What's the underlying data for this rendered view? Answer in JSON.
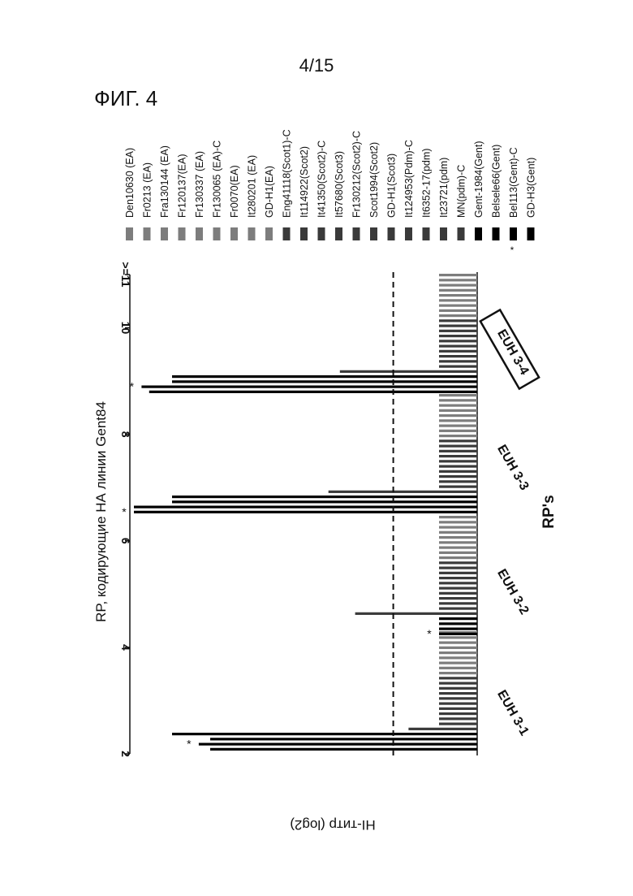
{
  "page_number": "4/15",
  "figure_label": "ФИГ. 4",
  "chart_data": {
    "type": "bar",
    "orientation": "rotated-90-ccw",
    "title": "RP, кодирующие НА линии Gent84",
    "xlabel": "RP's",
    "ylabel": "HI-титр (log2)",
    "ylim": [
      2,
      11
    ],
    "yticks": [
      2,
      4,
      6,
      8,
      10,
      11
    ],
    "ytick_labels": [
      "2",
      "4",
      "6",
      "8",
      "10",
      ">=11"
    ],
    "threshold": {
      "value": 4.2,
      "style": "dashed"
    },
    "categories": [
      "EUH 3-1",
      "EUH 3-2",
      "EUH 3-3",
      "EUH 3-4"
    ],
    "boxed_category": "EUH 3-4",
    "colors": {
      "light_gray": "#7d7d7d",
      "dark_gray": "#3a3a3a",
      "black": "#000000"
    },
    "series": [
      {
        "name": "Den10630 (EA)",
        "color": "#7d7d7d"
      },
      {
        "name": "Fr0213 (EA)",
        "color": "#7d7d7d"
      },
      {
        "name": "Fra130144 (EA)",
        "color": "#7d7d7d"
      },
      {
        "name": "Fr120137(EA)",
        "color": "#7d7d7d"
      },
      {
        "name": "Fr130337 (EA)",
        "color": "#7d7d7d"
      },
      {
        "name": "Fr130065 (EA)-C",
        "color": "#7d7d7d"
      },
      {
        "name": "Fr0070(EA)",
        "color": "#7d7d7d"
      },
      {
        "name": "It280201 (EA)",
        "color": "#7d7d7d"
      },
      {
        "name": "GD-H1(EA)",
        "color": "#7d7d7d"
      },
      {
        "name": "Eng41118(Scot1)-C",
        "color": "#3a3a3a"
      },
      {
        "name": "It114922(Scot2)",
        "color": "#3a3a3a"
      },
      {
        "name": "It41350(Scot2)-C",
        "color": "#3a3a3a"
      },
      {
        "name": "It57680(Scot3)",
        "color": "#3a3a3a"
      },
      {
        "name": "Fr130212(Scot2)-C",
        "color": "#3a3a3a"
      },
      {
        "name": "Scot1994(Scot2)",
        "color": "#3a3a3a"
      },
      {
        "name": "GD-H1(Scot3)",
        "color": "#3a3a3a"
      },
      {
        "name": "It124953(Pdm)-C",
        "color": "#3a3a3a"
      },
      {
        "name": "It6352-17(pdm)",
        "color": "#3a3a3a"
      },
      {
        "name": "It23721(pdm)",
        "color": "#3a3a3a"
      },
      {
        "name": "MN(pdm)-C",
        "color": "#3a3a3a"
      },
      {
        "name": "Gent-1984(Gent)",
        "color": "#000000"
      },
      {
        "name": "Belsele66(Gent)",
        "color": "#000000"
      },
      {
        "name": "Bel113(Gent)-C",
        "color": "#000000",
        "marker": "*"
      },
      {
        "name": "GD-H3(Gent)",
        "color": "#000000"
      }
    ],
    "groups": [
      {
        "category": "EUH 3-1",
        "values": [
          3,
          3,
          3,
          3,
          3,
          3,
          3,
          3,
          3,
          3,
          3,
          3,
          3,
          3,
          3,
          3,
          3,
          3,
          3,
          3.8,
          10,
          9,
          9.3,
          9
        ],
        "annotations": [
          {
            "series_index": 22,
            "text": "*"
          }
        ]
      },
      {
        "category": "EUH 3-2",
        "values": [
          3,
          3,
          3,
          3,
          3,
          3,
          3,
          3,
          3,
          3,
          3,
          3,
          3,
          3,
          3,
          3,
          3,
          3,
          3,
          5.2,
          3,
          3,
          3,
          3
        ],
        "annotations": [
          {
            "series_index": 23,
            "text": "*"
          }
        ]
      },
      {
        "category": "EUH 3-3",
        "values": [
          3,
          3,
          3,
          3,
          3,
          3,
          3,
          3,
          3,
          3,
          3,
          3,
          3,
          3,
          3,
          3,
          3,
          3,
          3,
          5.9,
          10,
          10,
          11,
          11
        ],
        "annotations": [
          {
            "series_index": 23,
            "text": "*"
          }
        ]
      },
      {
        "category": "EUH 3-4",
        "values": [
          3,
          3,
          3,
          3,
          3,
          3,
          3,
          3,
          3,
          3,
          3,
          3,
          3,
          3,
          3,
          3,
          3,
          3,
          3,
          5.6,
          10,
          10,
          10.8,
          10.6
        ],
        "annotations": [
          {
            "series_index": 22,
            "text": "*"
          }
        ]
      }
    ]
  }
}
